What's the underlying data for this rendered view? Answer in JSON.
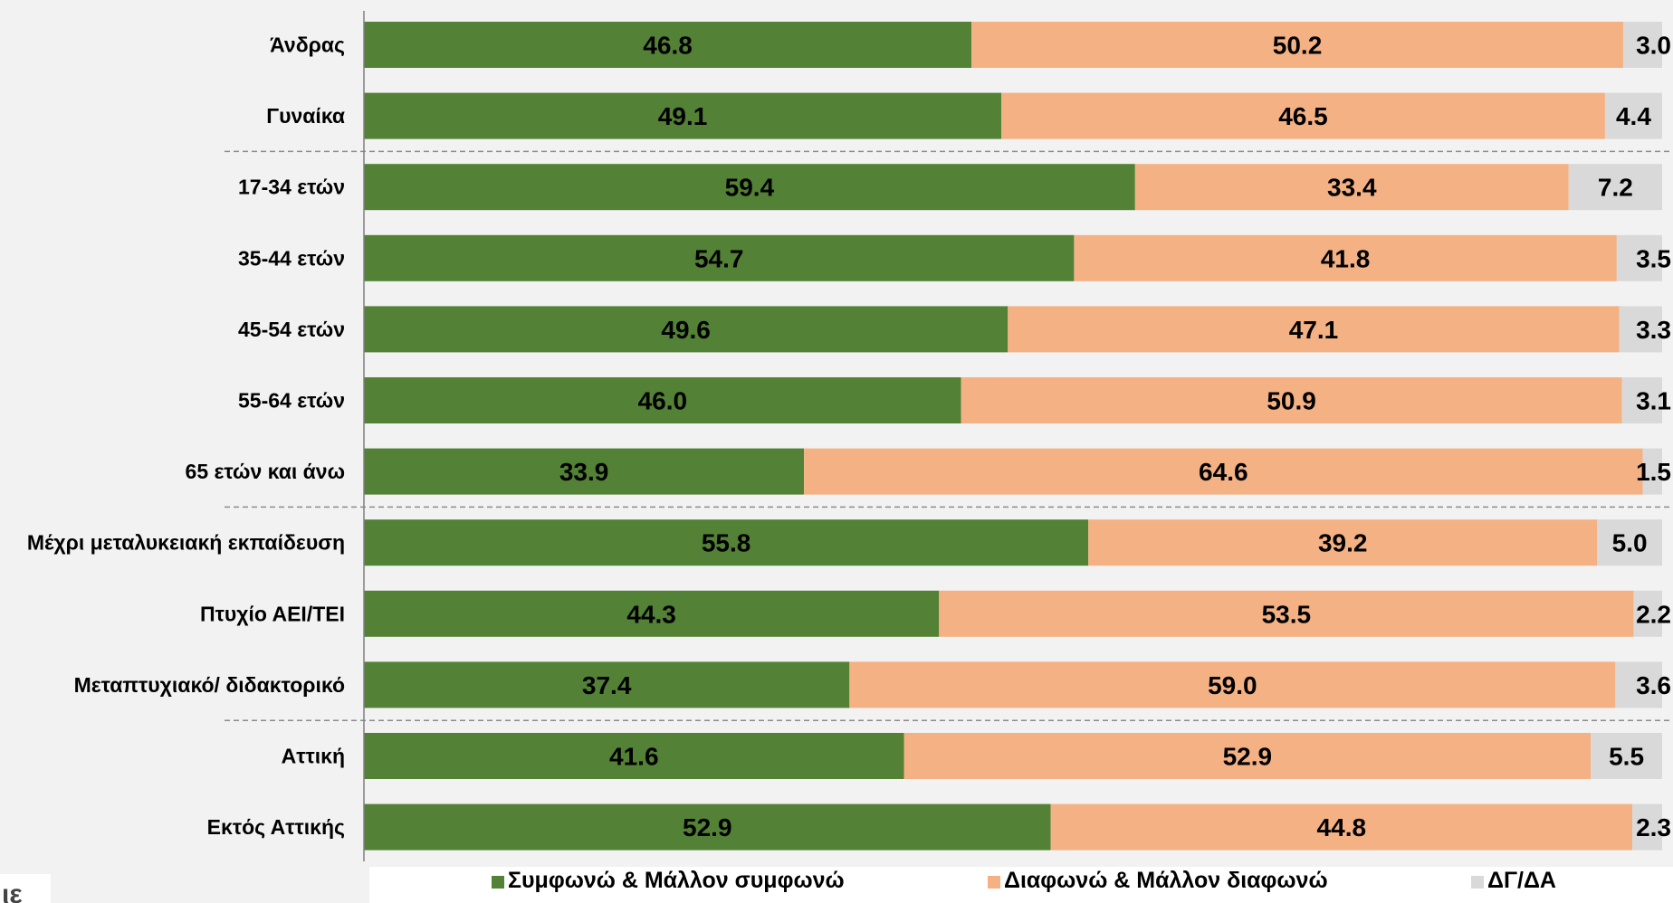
{
  "chart_data": {
    "type": "bar",
    "orientation": "horizontal",
    "stacked": true,
    "xlim": [
      0,
      100
    ],
    "categories": [
      "Άνδρας",
      "Γυναίκα",
      "17-34 ετών",
      "35-44 ετών",
      "45-54 ετών",
      "55-64 ετών",
      "65 ετών και άνω",
      "Μέχρι μεταλυκειακή εκπαίδευση",
      "Πτυχίο ΑΕΙ/ΤΕΙ",
      "Μεταπτυχιακό/ διδακτορικό",
      "Αττική",
      "Εκτός Αττικής"
    ],
    "group_separators_after": [
      1,
      6,
      9
    ],
    "series": [
      {
        "name": "Συμφωνώ & Μάλλον συμφωνώ",
        "color": "#538135",
        "values": [
          46.8,
          49.1,
          59.4,
          54.7,
          49.6,
          46.0,
          33.9,
          55.8,
          44.3,
          37.4,
          41.6,
          52.9
        ],
        "labels": [
          "46.8",
          "49.1",
          "59.4",
          "54.7",
          "49.6",
          "46.0",
          "33.9",
          "55.8",
          "44.3",
          "37.4",
          "41.6",
          "52.9"
        ]
      },
      {
        "name": "Διαφωνώ & Μάλλον διαφωνώ",
        "color": "#f4b183",
        "values": [
          50.2,
          46.5,
          33.4,
          41.8,
          47.1,
          50.9,
          64.6,
          39.2,
          53.5,
          59.0,
          52.9,
          44.8
        ],
        "labels": [
          "50.2",
          "46.5",
          "33.4",
          "41.8",
          "47.1",
          "50.9",
          "64.6",
          "39.2",
          "53.5",
          "59.0",
          "52.9",
          "44.8"
        ]
      },
      {
        "name": "ΔΓ/ΔΑ",
        "color": "#d9d9d9",
        "values": [
          3.0,
          4.4,
          7.2,
          3.5,
          3.3,
          3.1,
          1.5,
          5.0,
          2.2,
          3.6,
          5.5,
          2.3
        ],
        "labels": [
          "3.0",
          "4.4",
          "7.2",
          "3.5",
          "3.3",
          "3.1",
          "1.5",
          "5.0",
          "2.2",
          "3.6",
          "5.5",
          "2.3"
        ]
      }
    ],
    "legend_position": "bottom",
    "grid": false
  },
  "logo_text": "ιε"
}
